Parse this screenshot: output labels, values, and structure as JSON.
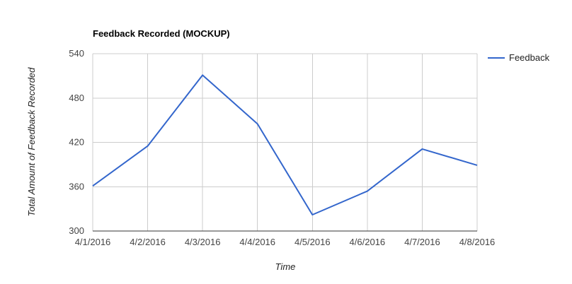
{
  "chart_data": {
    "type": "line",
    "title": "Feedback Recorded (MOCKUP)",
    "xlabel": "Time",
    "ylabel": "Total Amount of Feedback Recorded",
    "categories": [
      "4/1/2016",
      "4/2/2016",
      "4/3/2016",
      "4/4/2016",
      "4/5/2016",
      "4/6/2016",
      "4/7/2016",
      "4/8/2016"
    ],
    "series": [
      {
        "name": "Feedback",
        "color": "#3366cc",
        "values": [
          361,
          415,
          511,
          445,
          322,
          354,
          411,
          389
        ]
      }
    ],
    "ylim": [
      300,
      540
    ],
    "yticks": [
      "300",
      "360",
      "420",
      "480",
      "540"
    ],
    "grid": true,
    "legend_position": "right"
  }
}
